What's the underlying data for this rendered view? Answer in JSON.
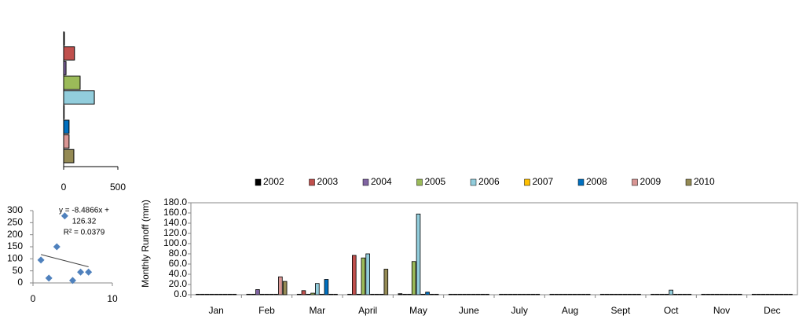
{
  "chart_data": [
    {
      "type": "barh",
      "values": [
        7,
        100,
        22,
        152,
        283,
        5,
        50,
        50,
        94
      ],
      "colors": [
        "#000000",
        "#c0504d",
        "#8064a2",
        "#9bbb59",
        "#92cddc",
        "#ffc000",
        "#0070c0",
        "#d99694",
        "#948a54"
      ],
      "xlim": [
        0,
        500
      ],
      "xticks": [
        0,
        500
      ]
    },
    {
      "type": "scatter",
      "x": [
        1,
        2,
        3,
        4,
        5,
        6,
        7
      ],
      "values": [
        95,
        20,
        150,
        278,
        10,
        45,
        45
      ],
      "color": "#4f81bd",
      "xlim": [
        0,
        10
      ],
      "xticks": [
        0,
        10
      ],
      "ylim": [
        0,
        300
      ],
      "yticks": [
        0,
        50,
        100,
        150,
        200,
        250,
        300
      ],
      "trendline": {
        "slope": -8.4866,
        "intercept": 126.32
      },
      "annotation": [
        "y = -8.4866x +",
        "126.32",
        "R² = 0.0379"
      ]
    },
    {
      "type": "bar",
      "y_label": "Monthly  Runoff (mm)",
      "categories": [
        "Jan",
        "Feb",
        "Mar",
        "April",
        "May",
        "June",
        "July",
        "Aug",
        "Sept",
        "Oct",
        "Nov",
        "Dec"
      ],
      "legend": "top",
      "ylim": [
        0,
        180
      ],
      "yticks": [
        {
          "value": 0,
          "label": "0.0"
        },
        {
          "value": 20,
          "label": "20.0"
        },
        {
          "value": 40,
          "label": "40.0"
        },
        {
          "value": 60,
          "label": "60.0"
        },
        {
          "value": 80,
          "label": "80.0"
        },
        {
          "value": 100,
          "label": "100.0"
        },
        {
          "value": 120,
          "label": "120.0"
        },
        {
          "value": 140,
          "label": "140.0"
        },
        {
          "value": 160,
          "label": "160.0"
        },
        {
          "value": 180,
          "label": "180.0"
        }
      ],
      "series": [
        {
          "name": "2002",
          "color": "#000000",
          "values": [
            1,
            1,
            1,
            1,
            2,
            1,
            1,
            1,
            1,
            1,
            1,
            1
          ]
        },
        {
          "name": "2003",
          "color": "#c0504d",
          "values": [
            1,
            1,
            8,
            77,
            1,
            1,
            1,
            1,
            1,
            1,
            1,
            1
          ]
        },
        {
          "name": "2004",
          "color": "#8064a2",
          "values": [
            1,
            10,
            1,
            1,
            1,
            1,
            1,
            1,
            1,
            1,
            1,
            1
          ]
        },
        {
          "name": "2005",
          "color": "#9bbb59",
          "values": [
            1,
            1,
            3,
            72,
            65,
            1,
            1,
            1,
            1,
            1,
            1,
            1
          ]
        },
        {
          "name": "2006",
          "color": "#92cddc",
          "values": [
            1,
            1,
            22,
            80,
            158,
            1,
            1,
            1,
            1,
            9,
            1,
            1
          ]
        },
        {
          "name": "2007",
          "color": "#ffc000",
          "values": [
            1,
            1,
            1,
            1,
            1,
            1,
            1,
            1,
            1,
            1,
            1,
            1
          ]
        },
        {
          "name": "2008",
          "color": "#0070c0",
          "values": [
            1,
            1,
            30,
            1,
            5,
            1,
            1,
            1,
            1,
            1,
            1,
            1
          ]
        },
        {
          "name": "2009",
          "color": "#d99694",
          "values": [
            1,
            35,
            1,
            1,
            1,
            1,
            1,
            1,
            1,
            1,
            1,
            1
          ]
        },
        {
          "name": "2010",
          "color": "#948a54",
          "values": [
            1,
            26,
            1,
            50,
            1,
            1,
            1,
            1,
            1,
            1,
            1,
            1
          ]
        }
      ]
    }
  ]
}
